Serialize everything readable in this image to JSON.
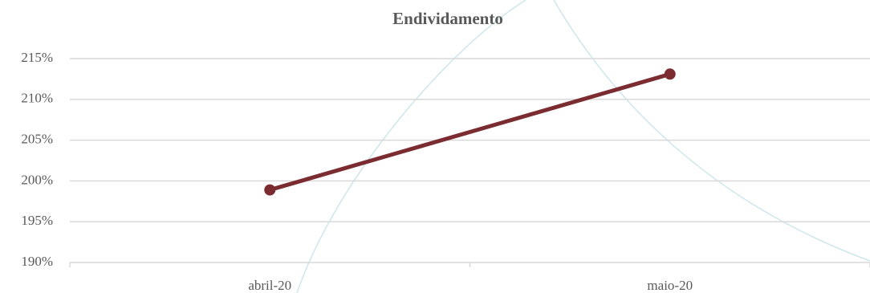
{
  "chart_data": {
    "type": "line",
    "title": "Endividamento",
    "categories": [
      "abril-20",
      "maio-20"
    ],
    "series": [
      {
        "name": "Endividamento",
        "color": "#7b2c30",
        "values": [
          198.9,
          213.1
        ]
      }
    ],
    "ylim": [
      190,
      215
    ],
    "yticks": [
      {
        "value": 190,
        "label": "190%"
      },
      {
        "value": 195,
        "label": "195%"
      },
      {
        "value": 200,
        "label": "200%"
      },
      {
        "value": 205,
        "label": "205%"
      },
      {
        "value": 210,
        "label": "210%"
      },
      {
        "value": 215,
        "label": "215%"
      }
    ],
    "grid": true
  }
}
